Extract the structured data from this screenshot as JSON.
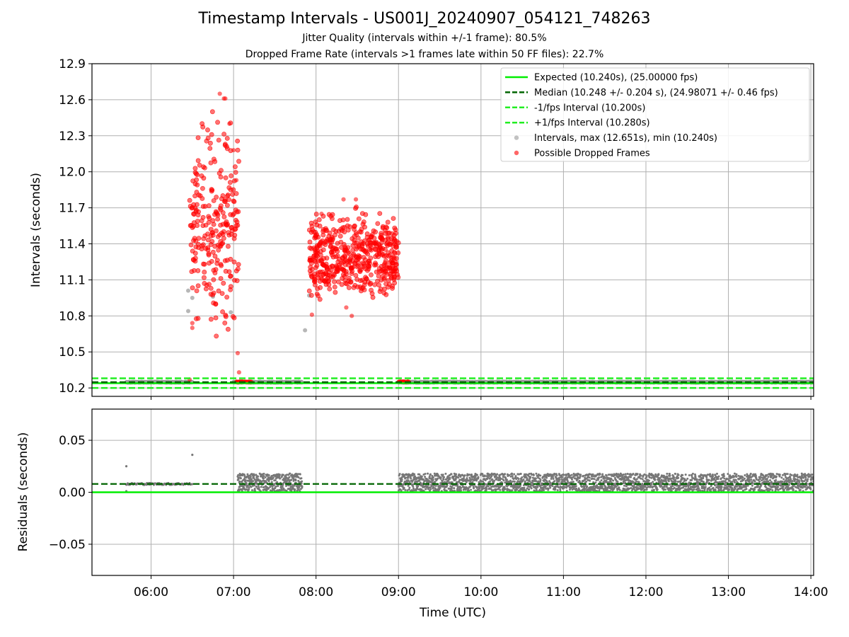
{
  "header": {
    "title": "Timestamp Intervals - US001J_20240907_054121_748263",
    "subtitle_jitter": "Jitter Quality (intervals within +/-1 frame): 80.5%",
    "subtitle_dropped": "Dropped Frame Rate (intervals >1 frames late within 50 FF files): 22.7%"
  },
  "colors": {
    "expected": "#00ee00",
    "median": "#006400",
    "fps_interval": "#22ee22",
    "intervals": "#999999",
    "dropped": "#ff0000",
    "residual_points": "#777777",
    "grid": "#b0b0b0"
  },
  "chart_data": [
    {
      "type": "scatter",
      "ylabel": "Intervals (seconds)",
      "xlim": [
        "05:17",
        "14:02"
      ],
      "ylim": [
        10.13,
        12.9
      ],
      "yticks": [
        "10.2",
        "10.5",
        "10.8",
        "11.1",
        "11.4",
        "11.7",
        "12.0",
        "12.3",
        "12.6",
        "12.9"
      ],
      "grid": true,
      "legend_position": "top-right",
      "legend": [
        {
          "label": "Expected (10.240s), (25.00000 fps)",
          "style": "solid-line",
          "color": "#00ee00"
        },
        {
          "label": "Median (10.248 +/- 0.204 s), (24.98071 +/- 0.46 fps)",
          "style": "dashed-line",
          "color": "#006400"
        },
        {
          "label": "-1/fps Interval (10.200s)",
          "style": "dashed-line",
          "color": "#22ee22"
        },
        {
          "label": "+1/fps Interval (10.280s)",
          "style": "dashed-line",
          "color": "#22ee22"
        },
        {
          "label": "Intervals, max (12.651s), min (10.240s)",
          "style": "marker",
          "color": "#999999"
        },
        {
          "label": "Possible Dropped Frames",
          "style": "marker",
          "color": "#ff0000"
        }
      ],
      "reference_lines": {
        "expected": 10.24,
        "median": 10.248,
        "minus_fps": 10.2,
        "plus_fps": 10.28
      },
      "series": [
        {
          "name": "Intervals, max (12.651s), min (10.240s)",
          "role": "baseline-band",
          "x_start": "05:42",
          "x_end": "06:30",
          "y": 10.248
        },
        {
          "name": "Intervals, max (12.651s), min (10.240s)",
          "role": "baseline-band",
          "x_start": "07:00",
          "x_end": "07:50",
          "y": 10.248
        },
        {
          "name": "Intervals, max (12.651s), min (10.240s)",
          "role": "baseline-band",
          "x_start": "09:00",
          "x_end": "14:02",
          "y": 10.248
        },
        {
          "name": "Intervals, max (12.651s), min (10.240s)",
          "role": "points",
          "points": [
            [
              "06:27",
              11.01
            ],
            [
              "06:27",
              10.84
            ],
            [
              "06:30",
              10.95
            ],
            [
              "07:52",
              10.68
            ],
            [
              "07:55",
              10.97
            ],
            [
              "06:45",
              10.96
            ],
            [
              "06:58",
              10.83
            ]
          ]
        },
        {
          "name": "Possible Dropped Frames",
          "role": "cluster",
          "x_range": [
            "06:28",
            "07:04"
          ],
          "y_range": [
            10.48,
            12.65
          ],
          "count": 260
        },
        {
          "name": "Possible Dropped Frames",
          "role": "cluster",
          "x_range": [
            "07:55",
            "09:00"
          ],
          "y_range": [
            10.8,
            11.77
          ],
          "count": 520
        },
        {
          "name": "Possible Dropped Frames",
          "role": "points",
          "points": [
            [
              "06:50",
              12.65
            ],
            [
              "06:53",
              12.61
            ],
            [
              "06:54",
              12.61
            ],
            [
              "06:57",
              12.4
            ],
            [
              "07:00",
              12.18
            ],
            [
              "07:02",
              11.93
            ],
            [
              "07:03",
              10.49
            ],
            [
              "07:04",
              10.33
            ],
            [
              "06:28",
              10.27
            ],
            [
              "06:30",
              10.74
            ],
            [
              "06:30",
              10.7
            ],
            [
              "08:20",
              11.77
            ],
            [
              "08:29",
              11.77
            ],
            [
              "08:04",
              11.65
            ],
            [
              "08:26",
              10.8
            ],
            [
              "08:22",
              10.87
            ],
            [
              "07:57",
              10.81
            ]
          ]
        },
        {
          "name": "Possible Dropped Frames",
          "role": "baseline-band",
          "x_start": "07:02",
          "x_end": "07:13",
          "y": 10.25
        },
        {
          "name": "Possible Dropped Frames",
          "role": "baseline-band",
          "x_start": "09:00",
          "x_end": "09:08",
          "y": 10.25
        }
      ]
    },
    {
      "type": "scatter",
      "xlabel": "Time (UTC)",
      "ylabel": "Residuals (seconds)",
      "xlim": [
        "05:17",
        "14:02"
      ],
      "xticks": [
        "06:00",
        "07:00",
        "08:00",
        "09:00",
        "10:00",
        "11:00",
        "12:00",
        "13:00",
        "14:00"
      ],
      "ylim": [
        -0.08,
        0.08
      ],
      "yticks": [
        "−0.05",
        "0.00",
        "0.05"
      ],
      "grid": true,
      "reference_lines": {
        "expected": 0.0,
        "median": 0.008
      },
      "series": [
        {
          "role": "points",
          "points": [
            [
              "05:42",
              0.025
            ],
            [
              "06:30",
              0.036
            ],
            [
              "05:42",
              0.001
            ]
          ]
        },
        {
          "role": "band",
          "x_start": "05:42",
          "x_end": "06:30",
          "y_range": [
            0.007,
            0.009
          ]
        },
        {
          "role": "band",
          "x_start": "07:03",
          "x_end": "07:50",
          "y_range": [
            0.001,
            0.018
          ]
        },
        {
          "role": "band",
          "x_start": "09:00",
          "x_end": "14:02",
          "y_range": [
            0.001,
            0.018
          ]
        }
      ]
    }
  ]
}
